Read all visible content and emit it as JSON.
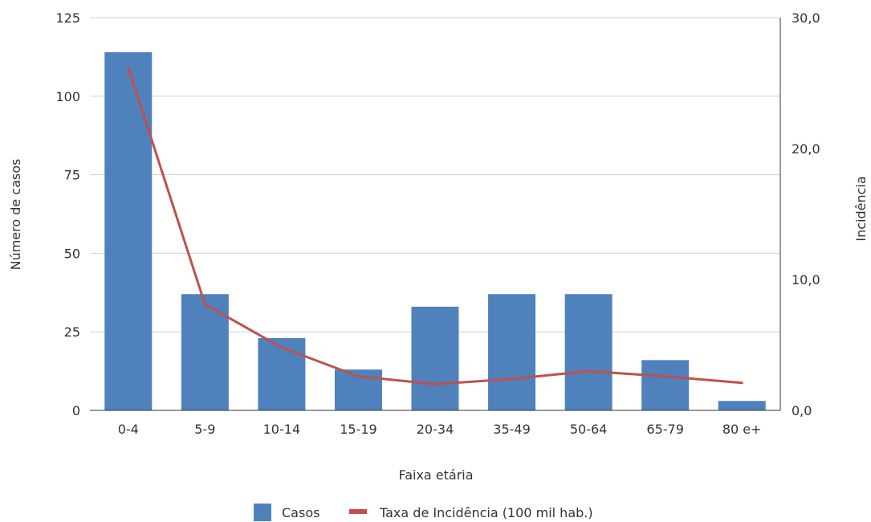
{
  "chart_data": {
    "type": "bar",
    "xlabel": "Faixa etária",
    "ylabel": "Número de casos",
    "y2label": "Incidência",
    "categories": [
      "0-4",
      "5-9",
      "10-14",
      "15-19",
      "20-34",
      "35-49",
      "50-64",
      "65-79",
      "80 e+"
    ],
    "ylim": [
      0,
      125
    ],
    "yticks": [
      "0",
      "25",
      "50",
      "75",
      "100",
      "125"
    ],
    "y2lim": [
      0,
      30
    ],
    "y2ticks": [
      "0,0",
      "10,0",
      "20,0",
      "30,0"
    ],
    "grid": true,
    "legend_position": "bottom",
    "series": [
      {
        "name": "Casos",
        "type": "bar",
        "axis": "left",
        "color": "#4f81bd",
        "values": [
          114,
          37,
          23,
          13,
          33,
          37,
          37,
          16,
          3
        ]
      },
      {
        "name": "Taxa de Incidência (100 mil hab.)",
        "type": "line",
        "axis": "right",
        "color": "#c0504d",
        "values": [
          26.2,
          8.1,
          4.8,
          2.6,
          2.0,
          2.4,
          3.0,
          2.6,
          2.1
        ]
      }
    ]
  }
}
